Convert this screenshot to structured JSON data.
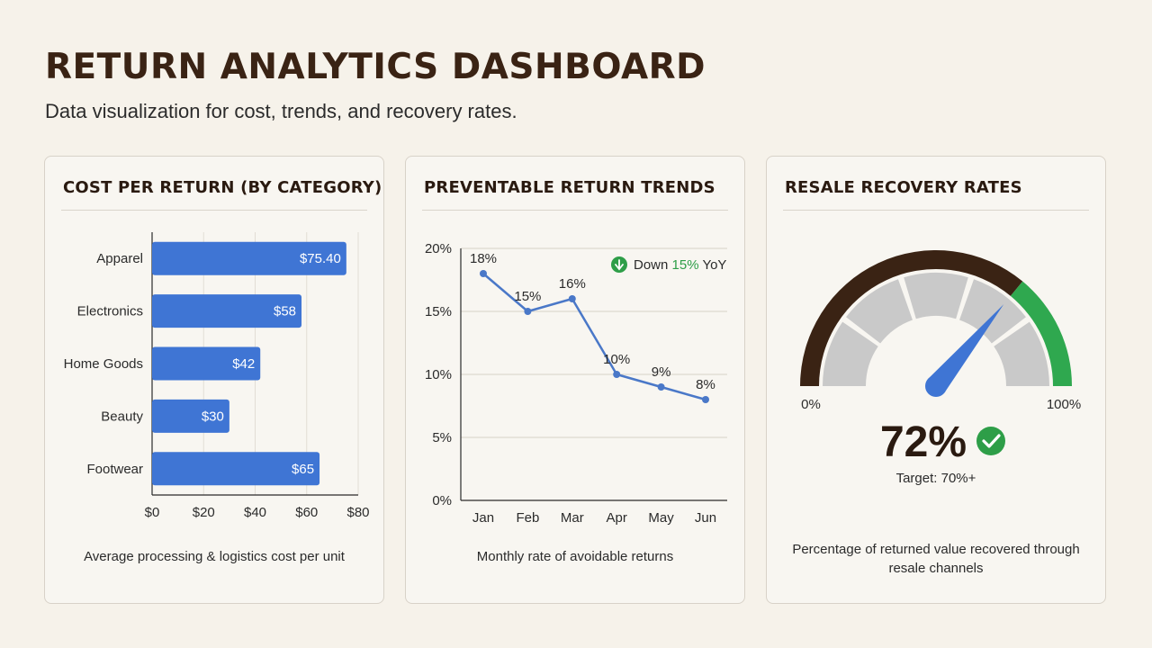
{
  "header": {
    "title": "RETURN ANALYTICS DASHBOARD",
    "subtitle": "Data visualization for cost, trends, and recovery rates."
  },
  "colors": {
    "bar": "#3f75d4",
    "line": "#4a78c8",
    "gauge_dark": "#3a2314",
    "gauge_green": "#2fa84f",
    "gauge_gray": "#c9c9c9",
    "badge_green": "#2e9e48"
  },
  "cost_card": {
    "title": "COST PER RETURN (BY CATEGORY)",
    "caption": "Average processing & logistics cost per unit"
  },
  "trend_card": {
    "title": "PREVENTABLE RETURN TRENDS",
    "badge_prefix": "Down ",
    "badge_value": "15%",
    "badge_suffix": " YoY",
    "caption": "Monthly rate of avoidable returns"
  },
  "recovery_card": {
    "title": "RESALE RECOVERY RATES",
    "value": "72%",
    "value_fraction": 0.72,
    "min_label": "0%",
    "max_label": "100%",
    "target": "Target: 70%+",
    "caption": "Percentage of returned value recovered through resale channels"
  },
  "chart_data": [
    {
      "type": "bar",
      "orientation": "horizontal",
      "title": "COST PER RETURN (BY CATEGORY)",
      "categories": [
        "Apparel",
        "Electronics",
        "Home Goods",
        "Beauty",
        "Footwear"
      ],
      "values": [
        75.4,
        58,
        42,
        30,
        65
      ],
      "value_labels": [
        "$75.40",
        "$58",
        "$42",
        "$30",
        "$65"
      ],
      "xlim": [
        0,
        80
      ],
      "xticks": [
        0,
        20,
        40,
        60,
        80
      ],
      "xtick_labels": [
        "$0",
        "$20",
        "$40",
        "$60",
        "$80"
      ],
      "grid": true
    },
    {
      "type": "line",
      "title": "PREVENTABLE RETURN TRENDS",
      "x": [
        "Jan",
        "Feb",
        "Mar",
        "Apr",
        "May",
        "Jun"
      ],
      "values": [
        18,
        15,
        16,
        10,
        9,
        8
      ],
      "value_labels": [
        "18%",
        "15%",
        "16%",
        "10%",
        "9%",
        "8%"
      ],
      "ylim": [
        0,
        20
      ],
      "yticks": [
        0,
        5,
        10,
        15,
        20
      ],
      "ytick_labels": [
        "0%",
        "5%",
        "10%",
        "15%",
        "20%"
      ],
      "grid": true
    }
  ]
}
